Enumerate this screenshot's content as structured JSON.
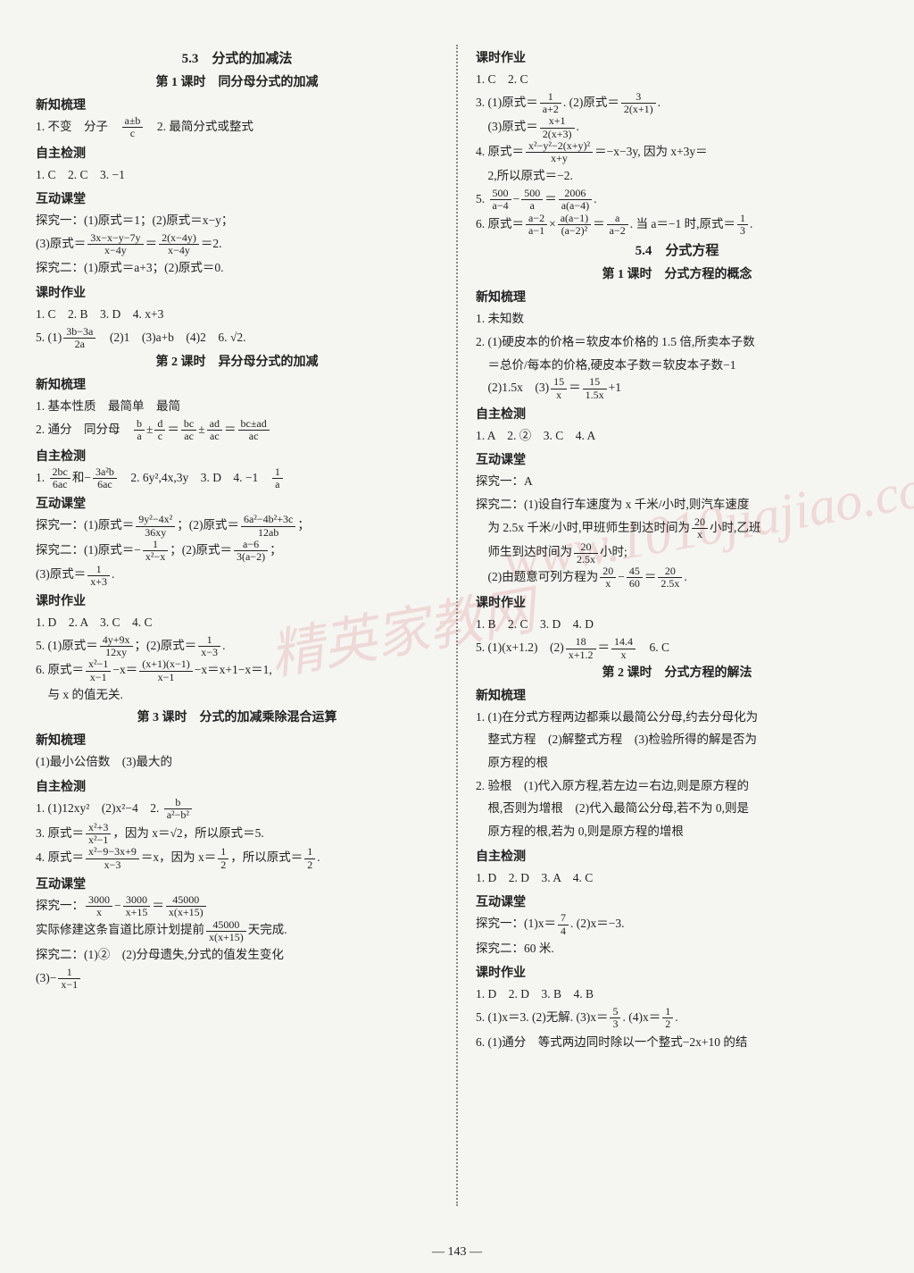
{
  "page_number": "— 143 —",
  "watermark_text": "精英家教网",
  "watermark_url": "www.1010jiajiao.com",
  "colors": {
    "bg": "#f5f5f2",
    "text": "#222",
    "watermark": "rgba(200,60,60,0.15)",
    "divider": "#888"
  },
  "left": {
    "s1_title": "5.3　分式的加减法",
    "s1_sub": "第 1 课时　同分母分式的加减",
    "h_xinzhi": "新知梳理",
    "l1a": "1. 不变　分子　",
    "l1b": "　2. 最简分式或整式",
    "h_zizhu": "自主检测",
    "l2": "1. C　2. C　3. −1",
    "h_hudong": "互动课堂",
    "l3": "探究一：(1)原式＝1；(2)原式＝x−y；",
    "l4a": "(3)原式＝",
    "l4b": "＝",
    "l4c": "＝2.",
    "l5": "探究二：(1)原式＝a+3；(2)原式＝0.",
    "h_keshi": "课时作业",
    "l6": "1. C　2. B　3. D　4. x+3",
    "l7a": "5. (1)",
    "l7b": "　(2)1　(3)a+b　(4)2　6. √2.",
    "s2_sub": "第 2 课时　异分母分式的加减",
    "l8": "1. 基本性质　最简单　最简",
    "l9a": "2. 通分　同分母　",
    "h_zizhu2": "自主检测",
    "l10a": "1. ",
    "l10b": "和−",
    "l10c": "　2. 6y²,4x,3y　3. D　4. −1　",
    "h_hudong2": "互动课堂",
    "l11a": "探究一：(1)原式＝",
    "l11b": "；(2)原式＝",
    "l11c": "；",
    "l12a": "探究二：(1)原式＝−",
    "l12b": "；(2)原式＝",
    "l12c": "；",
    "l13a": "(3)原式＝",
    "l13b": ".",
    "h_keshi2": "课时作业",
    "l14": "1. D　2. A　3. C　4. C",
    "l15a": "5. (1)原式＝",
    "l15b": "；(2)原式＝",
    "l15c": ".",
    "l16a": "6. 原式＝",
    "l16b": "−x＝",
    "l16c": "−x＝x+1−x＝1,",
    "l17": "　与 x 的值无关.",
    "s3_sub": "第 3 课时　分式的加减乘除混合运算",
    "l18": "(1)最小公倍数　(3)最大的",
    "h_zizhu3": "自主检测",
    "l19a": "1. (1)12xy²　(2)x²−4　2. ",
    "l20a": "3. 原式＝",
    "l20b": "，因为 x＝√2，所以原式＝5.",
    "l21a": "4. 原式＝",
    "l21b": "＝x，因为 x＝",
    "l21c": "，所以原式＝",
    "l21d": ".",
    "h_hudong3": "互动课堂",
    "l22a": "探究一：",
    "l22b": "−",
    "l22c": "＝",
    "l23a": "实际修建这条盲道比原计划提前",
    "l23b": "天完成.",
    "l24": "探究二：(1)②　(2)分母遗失,分式的值发生变化",
    "l25a": "(3)−",
    "frac_ab_c": {
      "num": "a±b",
      "den": "c"
    },
    "frac_3x": {
      "num": "3x−x−y−7y",
      "den": "x−4y"
    },
    "frac_2x4y": {
      "num": "2(x−4y)",
      "den": "x−4y"
    },
    "frac_3b3a": {
      "num": "3b−3a",
      "den": "2a"
    },
    "frac_bd": {
      "num": "b",
      "den": "a"
    },
    "frac_dc": {
      "num": "d",
      "den": "c"
    },
    "frac_bc_ac": {
      "num": "bc",
      "den": "ac"
    },
    "frac_ad_ac": {
      "num": "ad",
      "den": "ac"
    },
    "frac_bcad": {
      "num": "bc±ad",
      "den": "ac"
    },
    "frac_2bc": {
      "num": "2bc",
      "den": "6ac"
    },
    "frac_3a2b": {
      "num": "3a²b",
      "den": "6ac"
    },
    "frac_1a": {
      "num": "1",
      "den": "a"
    },
    "frac_9y2": {
      "num": "9y²−4x²",
      "den": "36xy"
    },
    "frac_6a2": {
      "num": "6a²−4b²+3c",
      "den": "12ab"
    },
    "frac_1x2x": {
      "num": "1",
      "den": "x²−x"
    },
    "frac_a6": {
      "num": "a−6",
      "den": "3(a−2)"
    },
    "frac_1x3": {
      "num": "1",
      "den": "x+3"
    },
    "frac_4y9x": {
      "num": "4y+9x",
      "den": "12xy"
    },
    "frac_1x_3": {
      "num": "1",
      "den": "x−3"
    },
    "frac_x21": {
      "num": "x²−1",
      "den": "x−1"
    },
    "frac_x1x1": {
      "num": "(x+1)(x−1)",
      "den": "x−1"
    },
    "frac_b_a2b2": {
      "num": "b",
      "den": "a²−b²"
    },
    "frac_x23": {
      "num": "x²+3",
      "den": "x²−1"
    },
    "frac_x29": {
      "num": "x²−9−3x+9",
      "den": "x−3"
    },
    "frac_12": {
      "num": "1",
      "den": "2"
    },
    "frac_3000x": {
      "num": "3000",
      "den": "x"
    },
    "frac_3000x15": {
      "num": "3000",
      "den": "x+15"
    },
    "frac_45000": {
      "num": "45000",
      "den": "x(x+15)"
    },
    "frac_1x1": {
      "num": "1",
      "den": "x−1"
    }
  },
  "right": {
    "h_keshi": "课时作业",
    "l1": "1. C　2. C",
    "l2a": "3. (1)原式＝",
    "l2b": ". (2)原式＝",
    "l2c": ".",
    "l3a": "　(3)原式＝",
    "l3b": ".",
    "l4a": "4. 原式＝",
    "l4b": "＝−x−3y, 因为 x+3y＝",
    "l5": "　2,所以原式＝−2.",
    "l6a": "5. ",
    "l6b": "−",
    "l6c": "＝",
    "l6d": ".",
    "l7a": "6. 原式＝",
    "l7b": "×",
    "l7c": "＝",
    "l7d": ". 当 a＝−1 时,原式＝",
    "l7e": ".",
    "s4_title": "5.4　分式方程",
    "s4_sub": "第 1 课时　分式方程的概念",
    "h_xinzhi": "新知梳理",
    "l8": "1. 未知数",
    "l9": "2. (1)硬皮本的价格＝软皮本价格的 1.5 倍,所卖本子数",
    "l10": "　＝总价/每本的价格,硬皮本子数＝软皮本子数−1",
    "l11a": "　(2)1.5x　(3)",
    "l11b": "＝",
    "l11c": "+1",
    "h_zizhu": "自主检测",
    "l12": "1. A　2. ②　3. C　4. A",
    "h_hudong": "互动课堂",
    "l13": "探究一：A",
    "l14": "探究二：(1)设自行车速度为 x 千米/小时,则汽车速度",
    "l15a": "　为 2.5x 千米/小时,甲班师生到达时间为",
    "l15b": "小时,乙班",
    "l16a": "　师生到达时间为",
    "l16b": "小时;",
    "l17a": "　(2)由题意可列方程为",
    "l17b": "−",
    "l17c": "＝",
    "l17d": ".",
    "h_keshi2": "课时作业",
    "l18": "1. B　2. C　3. D　4. D",
    "l19a": "5. (1)(x+1.2)　(2)",
    "l19b": "＝",
    "l19c": "　6. C",
    "s5_sub": "第 2 课时　分式方程的解法",
    "l20": "1. (1)在分式方程两边都乘以最简公分母,约去分母化为",
    "l21": "　整式方程　(2)解整式方程　(3)检验所得的解是否为",
    "l22": "　原方程的根",
    "l23": "2. 验根　(1)代入原方程,若左边＝右边,则是原方程的",
    "l24": "　根,否则为增根　(2)代入最简公分母,若不为 0,则是",
    "l25": "　原方程的根,若为 0,则是原方程的增根",
    "h_zizhu2": "自主检测",
    "l26": "1. D　2. D　3. A　4. C",
    "h_hudong2": "互动课堂",
    "l27a": "探究一：(1)x＝",
    "l27b": ". (2)x＝−3.",
    "l28": "探究二：60 米.",
    "h_keshi3": "课时作业",
    "l29": "1. D　2. D　3. B　4. B",
    "l30a": "5. (1)x＝3. (2)无解. (3)x＝",
    "l30b": ". (4)x＝",
    "l30c": ".",
    "l31": "6. (1)通分　等式两边同时除以一个整式−2x+10 的结",
    "frac_1a2": {
      "num": "1",
      "den": "a+2"
    },
    "frac_32x1": {
      "num": "3",
      "den": "2(x+1)"
    },
    "frac_x1_2x3": {
      "num": "x+1",
      "den": "2(x+3)"
    },
    "frac_x2y2": {
      "num": "x²−y²−2(x+y)²",
      "den": "x+y"
    },
    "frac_500a4": {
      "num": "500",
      "den": "a−4"
    },
    "frac_500a": {
      "num": "500",
      "den": "a"
    },
    "frac_2006": {
      "num": "2006",
      "den": "a(a−4)"
    },
    "frac_a2_a1": {
      "num": "a−2",
      "den": "a−1"
    },
    "frac_aa1": {
      "num": "a(a−1)",
      "den": "(a−2)²"
    },
    "frac_a_a2": {
      "num": "a",
      "den": "a−2"
    },
    "frac_13": {
      "num": "1",
      "den": "3"
    },
    "frac_15x": {
      "num": "15",
      "den": "x"
    },
    "frac_15_15x": {
      "num": "15",
      "den": "1.5x"
    },
    "frac_20x": {
      "num": "20",
      "den": "x"
    },
    "frac_20_25x": {
      "num": "20",
      "den": "2.5x"
    },
    "frac_4560": {
      "num": "45",
      "den": "60"
    },
    "frac_18_x12": {
      "num": "18",
      "den": "x+1.2"
    },
    "frac_144x": {
      "num": "14.4",
      "den": "x"
    },
    "frac_74": {
      "num": "7",
      "den": "4"
    },
    "frac_53": {
      "num": "5",
      "den": "3"
    },
    "frac_12": {
      "num": "1",
      "den": "2"
    }
  }
}
